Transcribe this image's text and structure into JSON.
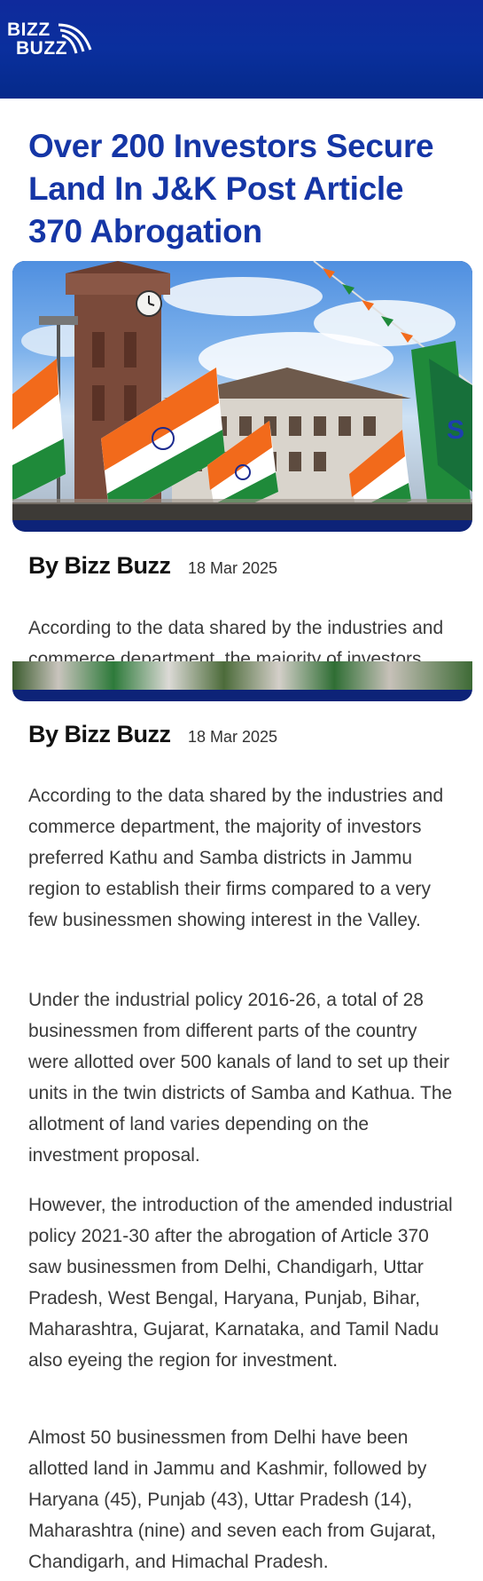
{
  "header": {
    "logo_line1": "BIZZ",
    "logo_line2": "BUZZ",
    "logo_icon": "wifi-arcs-icon"
  },
  "article": {
    "title": "Over 200 Investors Secure Land In J&K Post Article 370 Abrogation",
    "author": "By Bizz Buzz",
    "date": "18 Mar 2025",
    "paragraphs": [
      "According to the data shared by the industries and commerce department, the majority of investors preferred Kathu and Samba districts in Jammu region to establish their firms compared to a very few businessmen showing interest in the Valley.",
      "Under the industrial policy 2016-26, a total of 28 businessmen from different parts of the country were allotted over 500 kanals of land to set up their units in the twin districts of Samba and Kathua. The allotment of land varies depending on the investment proposal.",
      "However, the introduction of the amended industrial policy 2021-30 after the abrogation of Article 370 saw businessmen from Delhi, Chandigarh, Uttar Pradesh, West Bengal, Haryana, Punjab, Bihar, Maharashtra, Gujarat, Karnataka, and Tamil Nadu also eyeing the region for investment.",
      "Almost 50 businessmen from Delhi have been allotted land in Jammu and Kashmir, followed by Haryana (45), Punjab (43), Uttar Pradesh (14), Maharashtra (nine) and seven each from Gujarat, Chandigarh, and Himachal Pradesh."
    ]
  },
  "image": {
    "clock_tower_flag_text": "S"
  },
  "colors": {
    "header_blue": "#0a2f9d",
    "title_blue": "#1536a6",
    "saffron": "#f26a1b",
    "flag_green": "#1f8a3a"
  }
}
